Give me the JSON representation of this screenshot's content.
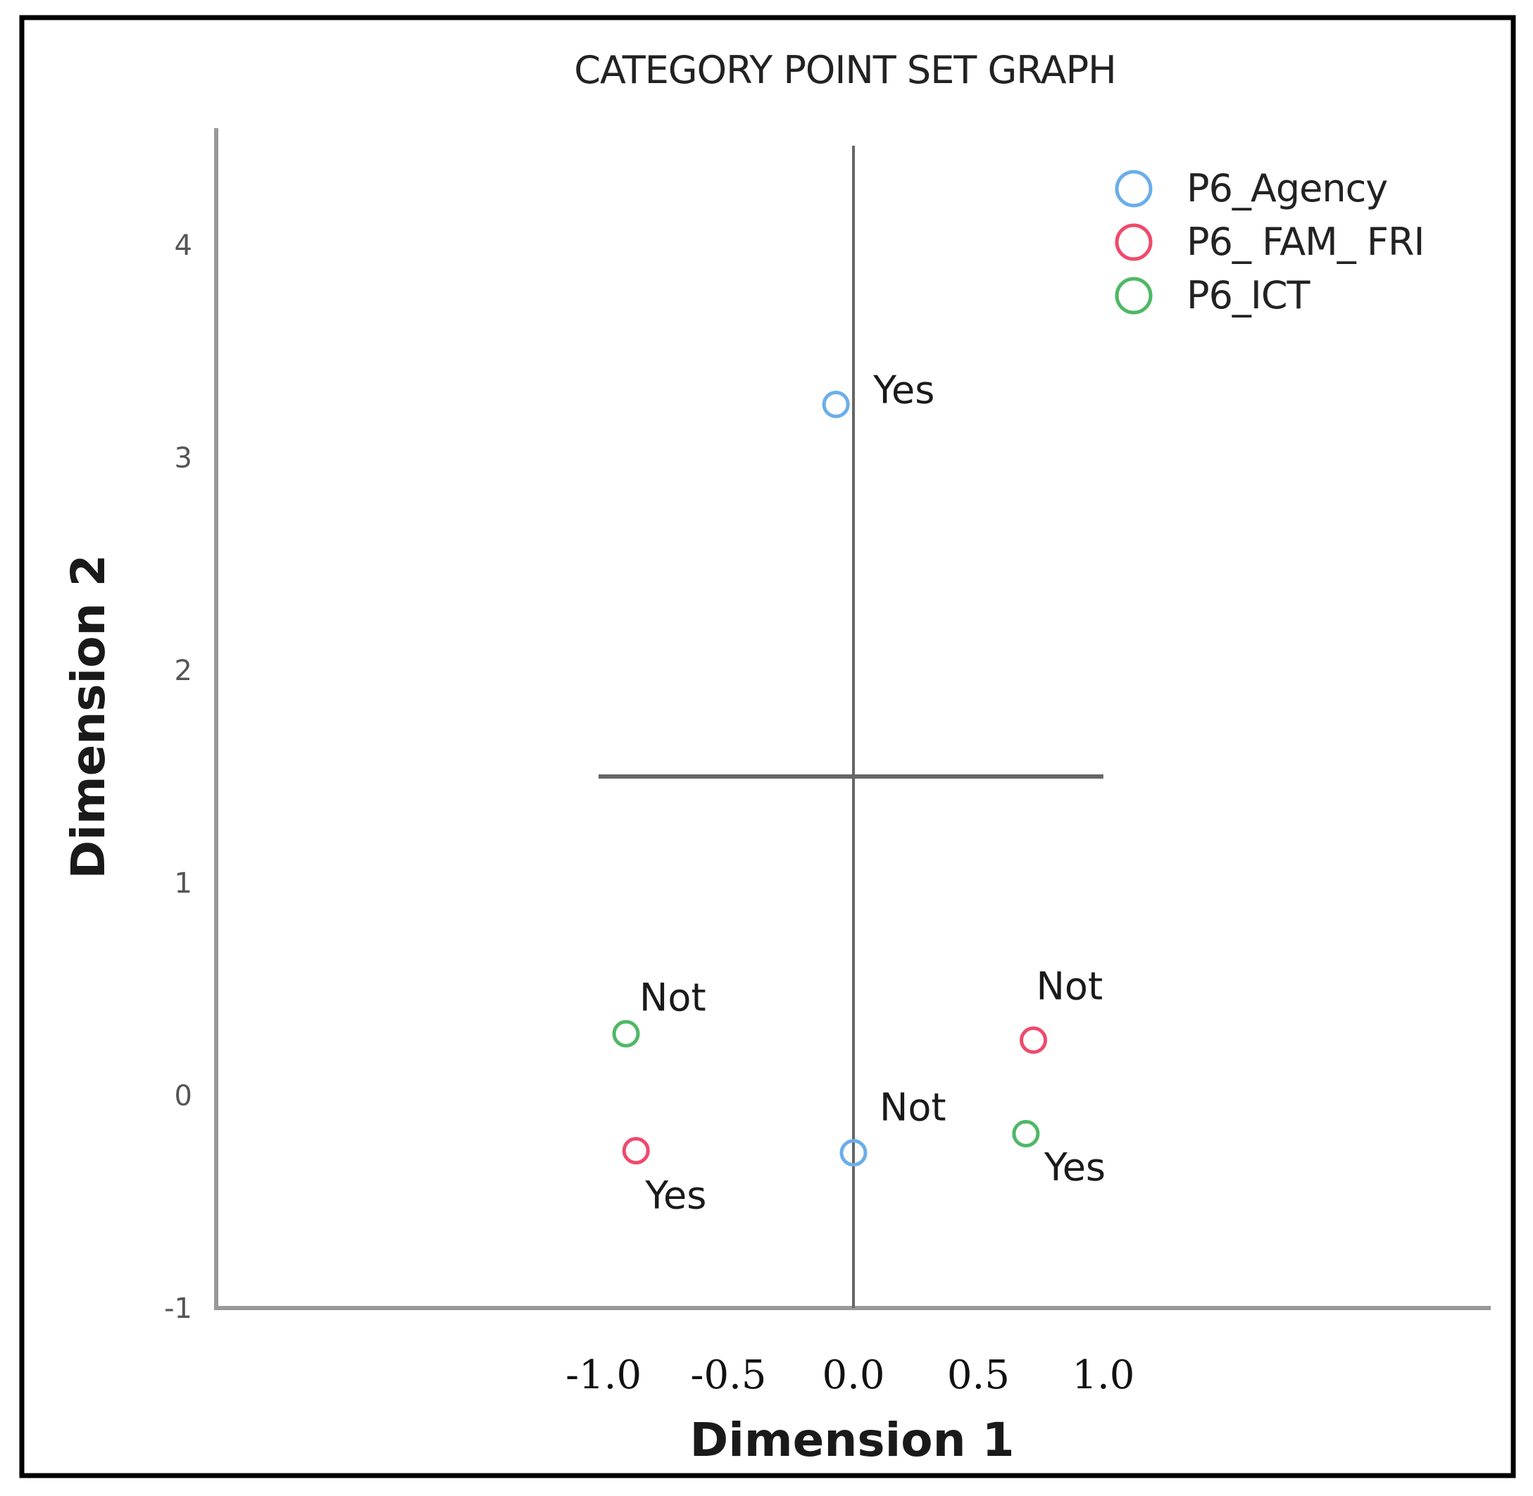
{
  "chart_data": {
    "type": "scatter",
    "title": "CATEGORY POINT SET GRAPH",
    "xlabel": "Dimension 1",
    "ylabel": "Dimension 2",
    "x_ticks": [
      "-1.0",
      "-0.5",
      "0.0",
      "0.5",
      "1.0"
    ],
    "y_ticks": [
      "-1",
      "0",
      "1",
      "2",
      "3",
      "4"
    ],
    "xlim": [
      -2.55,
      2.55
    ],
    "ylim": [
      -1.0,
      4.5
    ],
    "legend_position": "top-right",
    "series": [
      {
        "name": "P6_Agency",
        "color": "#6aaee8",
        "points": [
          {
            "x": -0.07,
            "y": 3.25,
            "label": "Yes"
          },
          {
            "x": 0.0,
            "y": -0.27,
            "label": "Not"
          }
        ]
      },
      {
        "name": "P6_ FAM_ FRI",
        "color": "#ef4a6c",
        "points": [
          {
            "x": 0.72,
            "y": 0.26,
            "label": "Not"
          },
          {
            "x": -0.87,
            "y": -0.26,
            "label": "Yes"
          }
        ]
      },
      {
        "name": "P6_ICT",
        "color": "#4fb865",
        "points": [
          {
            "x": -0.91,
            "y": 0.29,
            "label": "Not"
          },
          {
            "x": 0.69,
            "y": -0.18,
            "label": "Yes"
          }
        ]
      }
    ],
    "reference_lines": {
      "vertical_x": 0.0,
      "horizontal_y": 1.5,
      "horizontal_extent": [
        -1.02,
        1.0
      ]
    }
  }
}
